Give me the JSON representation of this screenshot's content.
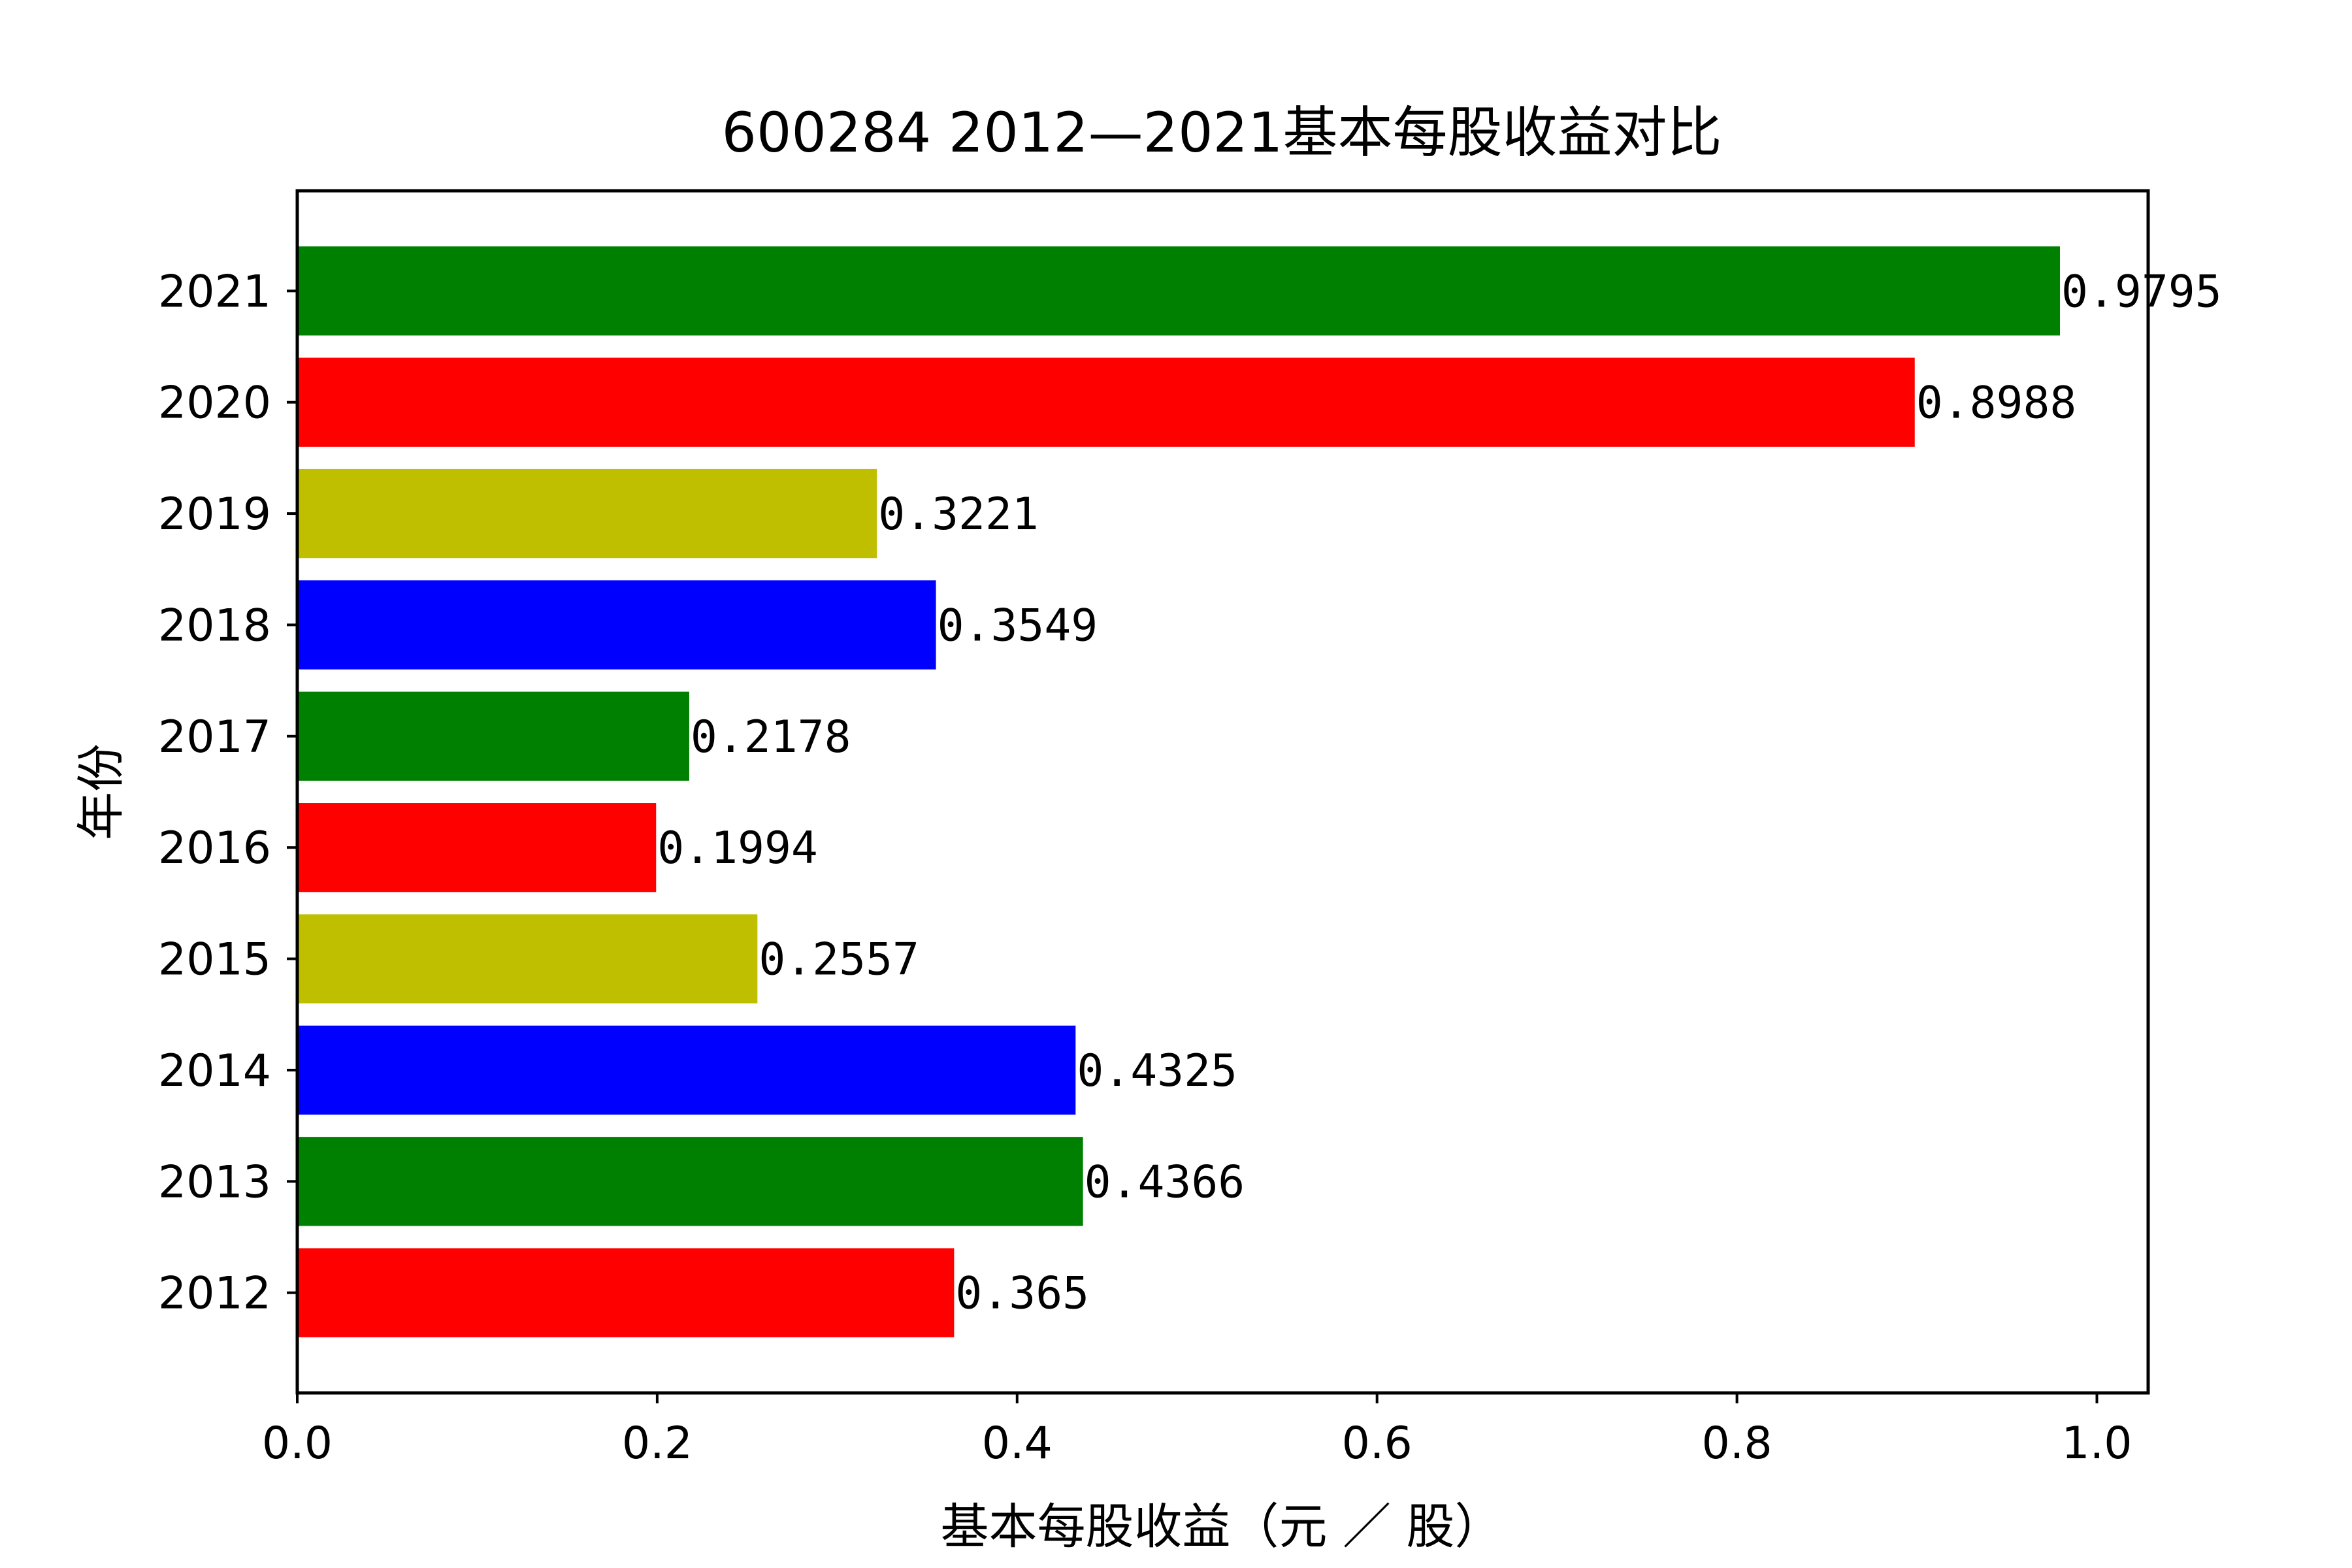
{
  "chart_data": {
    "type": "bar",
    "orientation": "horizontal",
    "title": "600284 2012—2021基本每股收益对比",
    "xlabel": "基本每股收益（元 ／ 股）",
    "ylabel": "年份",
    "categories": [
      "2012",
      "2013",
      "2014",
      "2015",
      "2016",
      "2017",
      "2018",
      "2019",
      "2020",
      "2021"
    ],
    "values": [
      0.365,
      0.4366,
      0.4325,
      0.2557,
      0.1994,
      0.2178,
      0.3549,
      0.3221,
      0.8988,
      0.9795
    ],
    "value_labels": [
      "0.365",
      "0.4366",
      "0.4325",
      "0.2557",
      "0.1994",
      "0.2178",
      "0.3549",
      "0.3221",
      "0.8988",
      "0.9795"
    ],
    "colors": [
      "#ff0000",
      "#008000",
      "#0000ff",
      "#bfbf00",
      "#ff0000",
      "#008000",
      "#0000ff",
      "#bfbf00",
      "#ff0000",
      "#008000"
    ],
    "xlim": [
      0,
      1.0285
    ],
    "xticks": [
      0.0,
      0.2,
      0.4,
      0.6,
      0.8,
      1.0
    ],
    "xtick_labels": [
      "0.0",
      "0.2",
      "0.4",
      "0.6",
      "0.8",
      "1.0"
    ],
    "grid": false,
    "legend": false
  }
}
